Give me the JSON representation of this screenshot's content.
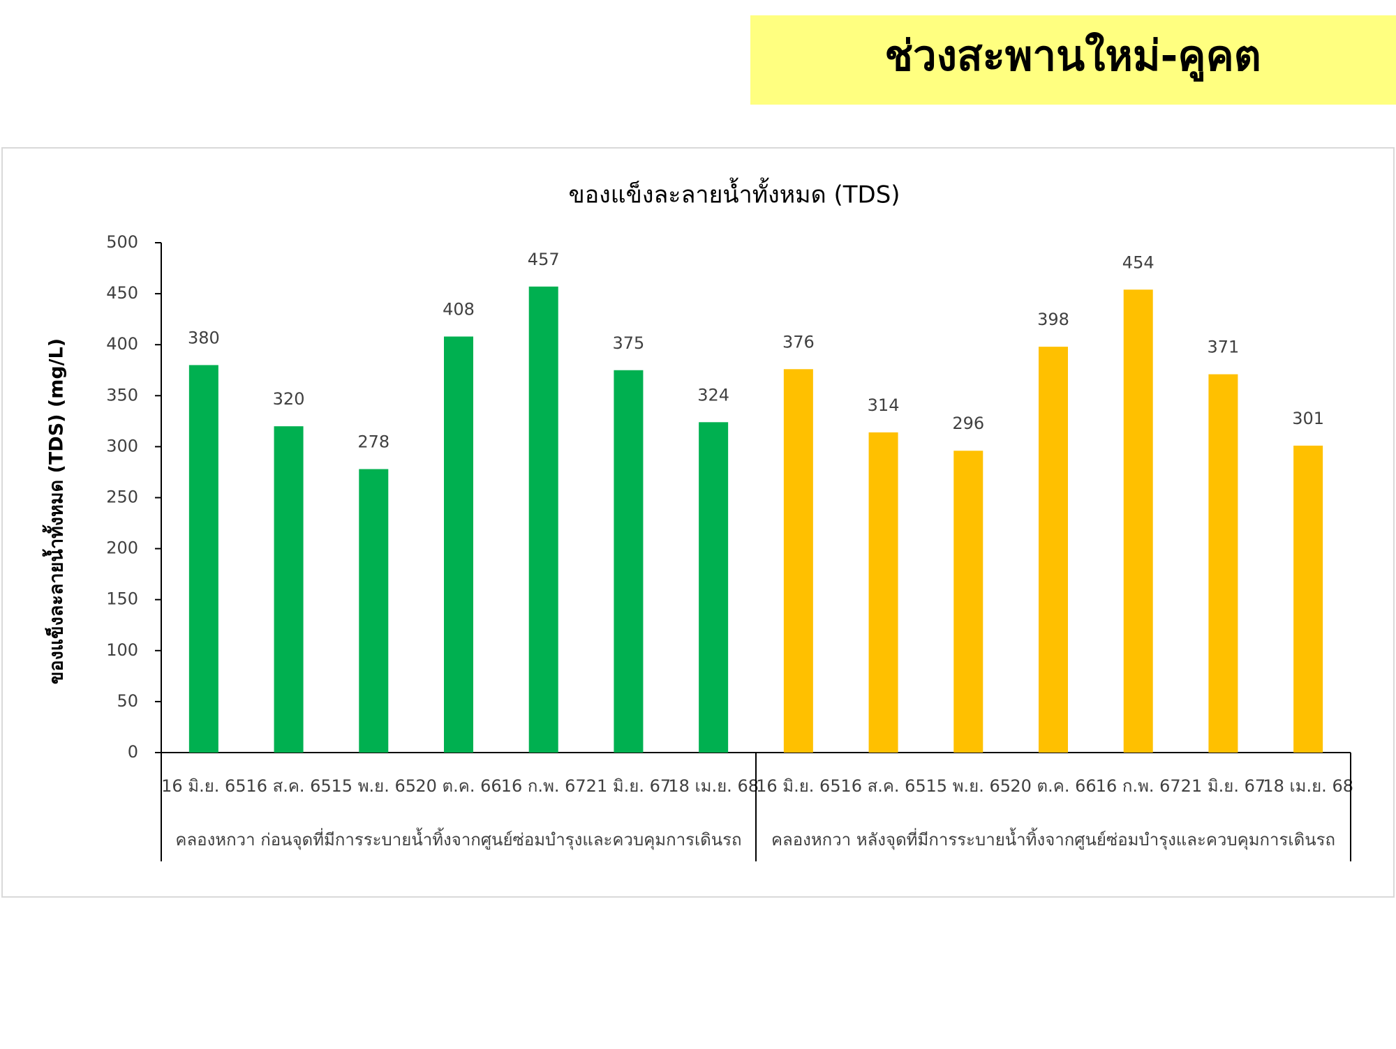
{
  "banner": "ช่วงสะพานใหม่-คูคต",
  "chart_data": {
    "type": "bar",
    "title": "ของแข็งละลายน้ำทั้งหมด (TDS)",
    "y_label": "ของแข็งละลายน้ำทั้งหมด (TDS) (mg/L)",
    "groups": [
      {
        "label": "คลองหกวา ก่อนจุดที่มีการระบายน้ำทิ้งจากศูนย์ซ่อมบำรุงและควบคุมการเดินรถ",
        "color": "#00b050",
        "categories": [
          "16 มิ.ย. 65",
          "16 ส.ค. 65",
          "15 พ.ย. 65",
          "20 ต.ค. 66",
          "16 ก.พ. 67",
          "21 มิ.ย. 67",
          "18 เม.ย. 68"
        ],
        "values": [
          380,
          320,
          278,
          408,
          457,
          375,
          324
        ]
      },
      {
        "label": "คลองหกวา หลังจุดที่มีการระบายน้ำทิ้งจากศูนย์ซ่อมบำรุงและควบคุมการเดินรถ",
        "color": "#ffc000",
        "categories": [
          "16 มิ.ย. 65",
          "16 ส.ค. 65",
          "15 พ.ย. 65",
          "20 ต.ค. 66",
          "16 ก.พ. 67",
          "21 มิ.ย. 67",
          "18 เม.ย. 68"
        ],
        "values": [
          376,
          314,
          296,
          398,
          454,
          371,
          301
        ]
      }
    ],
    "ylim": [
      0,
      500
    ],
    "yticks": [
      0,
      50,
      100,
      150,
      200,
      250,
      300,
      350,
      400,
      450,
      500
    ],
    "grid": false
  }
}
